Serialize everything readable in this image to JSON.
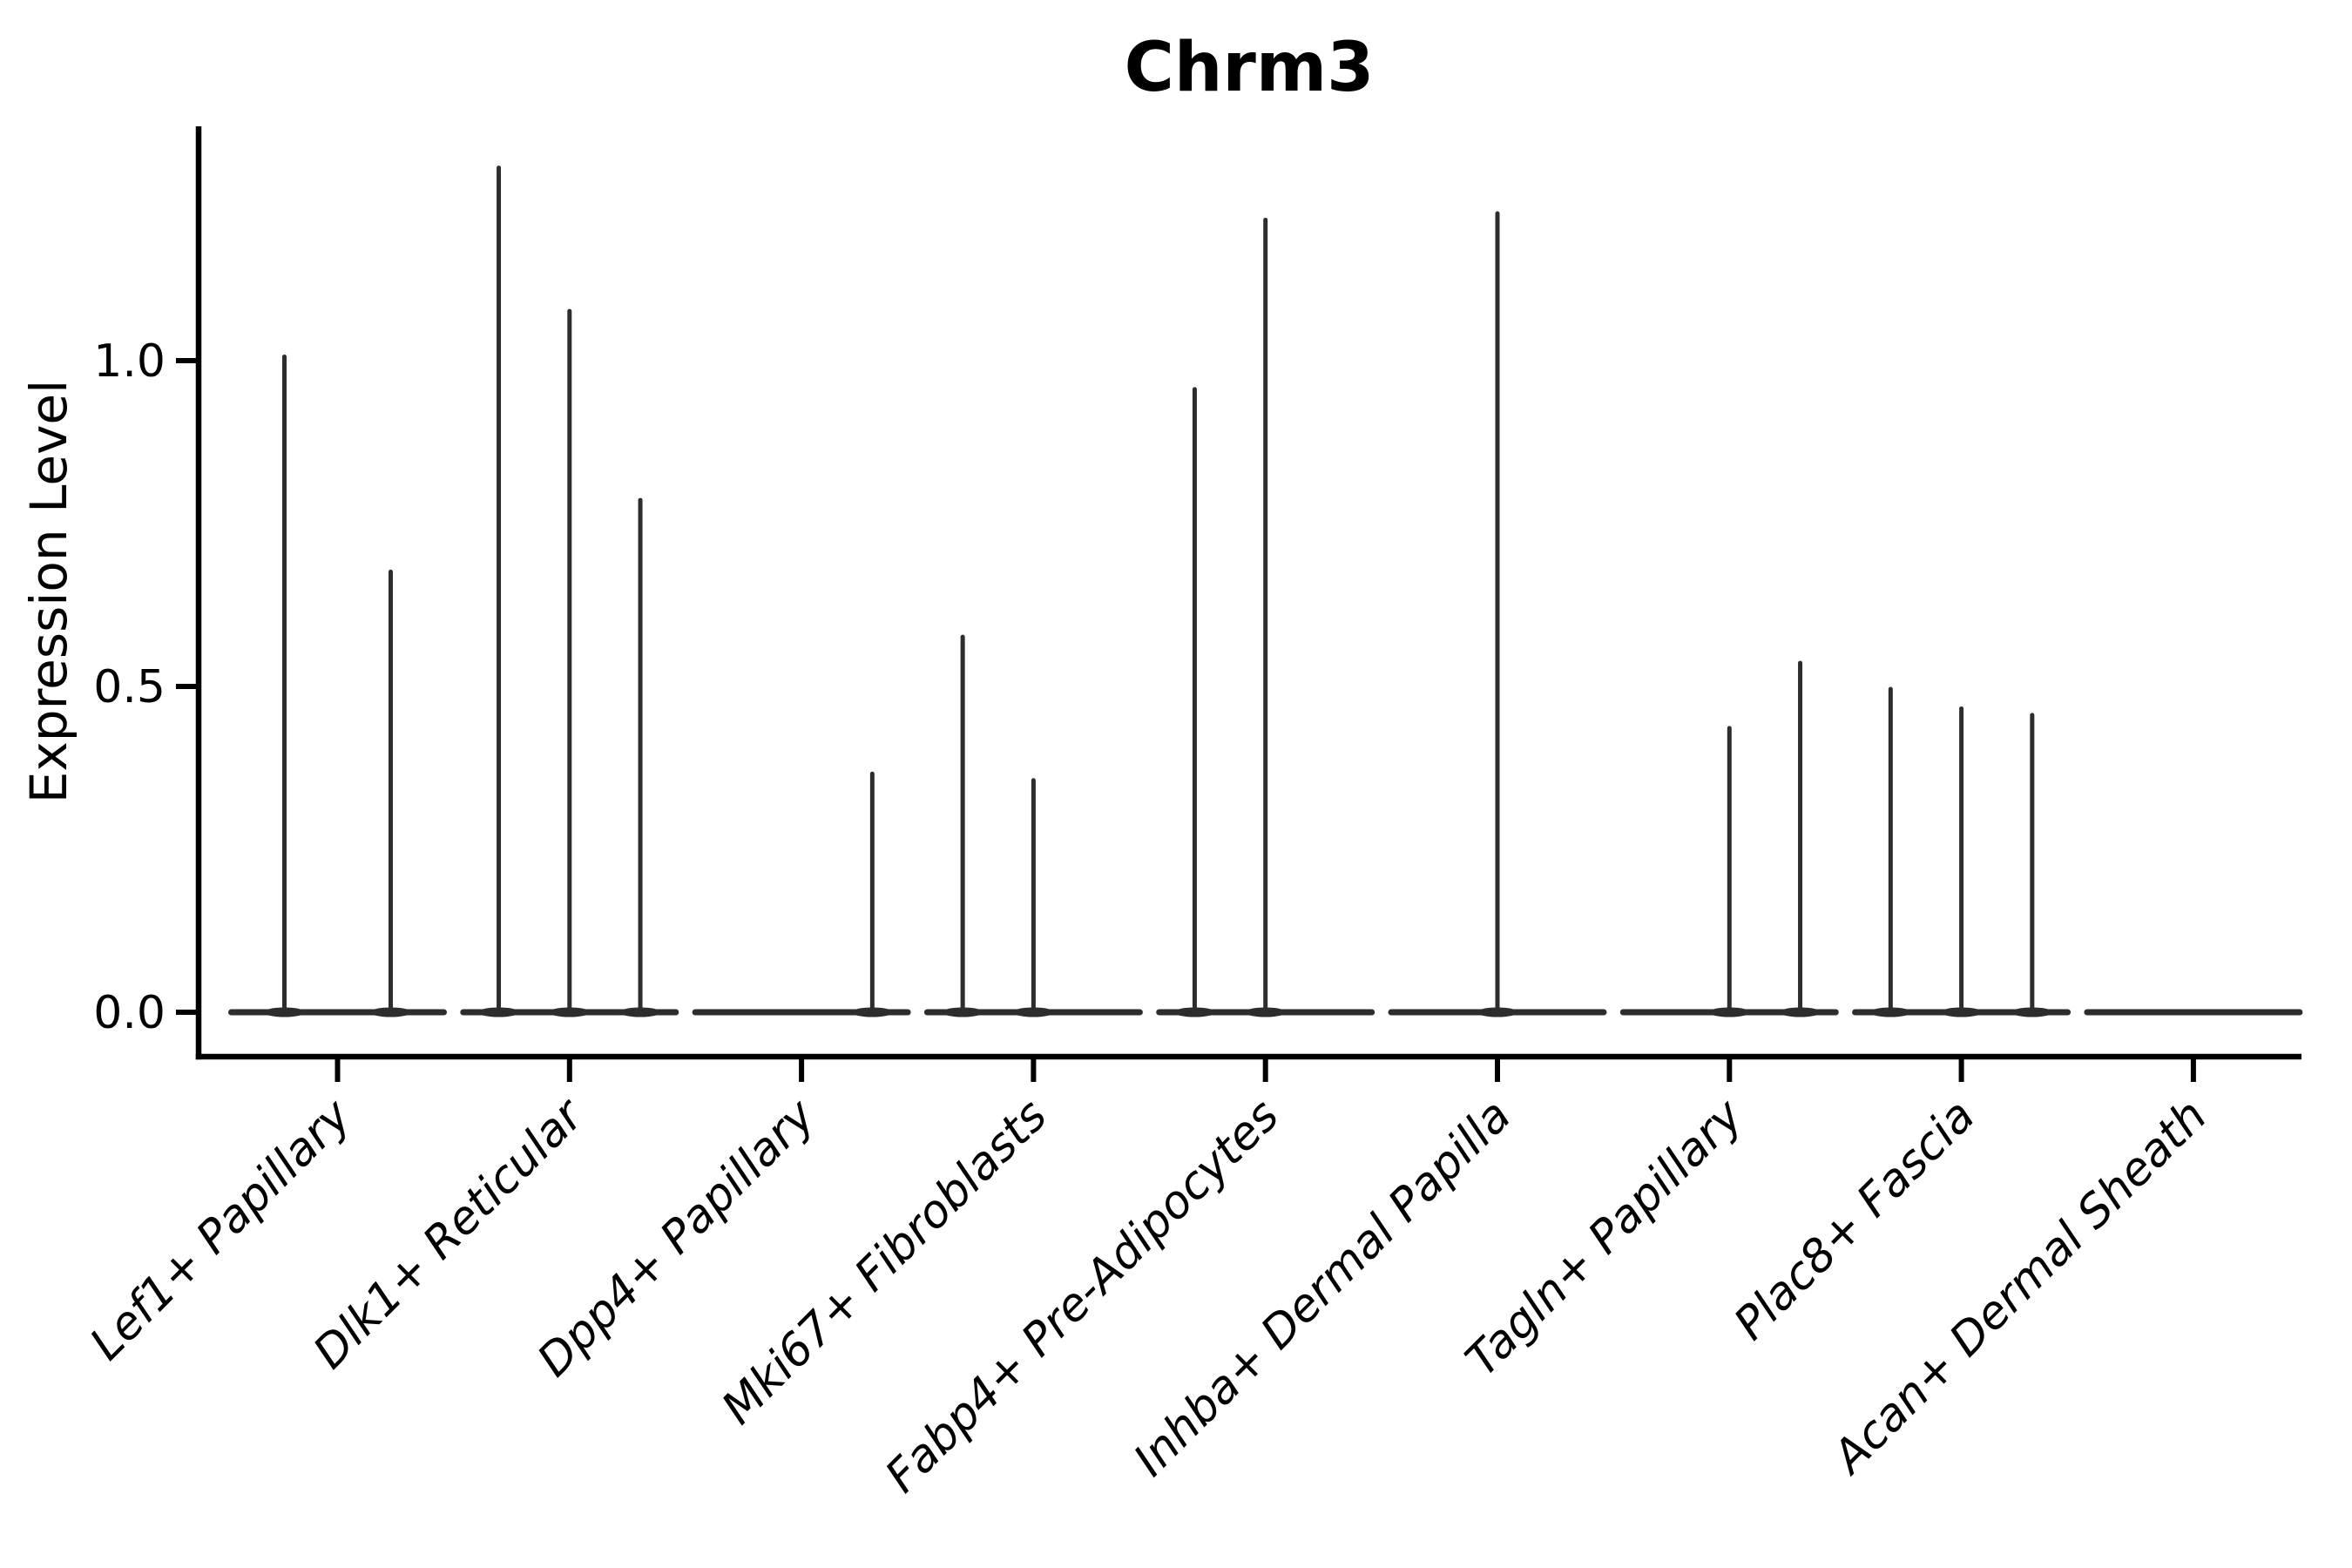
{
  "title": "Chrm3",
  "colors": {
    "violin": "#2d2d2d",
    "axis": "#000000",
    "text": "#000000",
    "background": "#ffffff"
  },
  "chart_data": {
    "type": "violin",
    "title": "Chrm3",
    "xlabel": "",
    "ylabel": "Expression Level",
    "ylim": [
      -0.07,
      1.36
    ],
    "grid": false,
    "legend": null,
    "yticks": [
      {
        "label": "0.0",
        "value": 0.0
      },
      {
        "label": "0.5",
        "value": 0.5
      },
      {
        "label": "1.0",
        "value": 1.0
      }
    ],
    "categories": [
      "Lef1+ Papillary",
      "Dlk1+ Reticular",
      "Dpp4+ Papillary",
      "Mki67+ Fibroblasts",
      "Fabp4+ Pre-Adipocytes",
      "Inhba+ Dermal Papilla",
      "Tagln+ Papillary",
      "Plac8+ Fascia",
      "Acan+ Dermal Sheath"
    ],
    "violins": [
      {
        "category": "Lef1+ Papillary",
        "spikes": [
          {
            "pos": 0.25,
            "value": 1.01
          },
          {
            "pos": 0.75,
            "value": 0.68
          }
        ]
      },
      {
        "category": "Dlk1+ Reticular",
        "spikes": [
          {
            "pos": 0.167,
            "value": 1.3
          },
          {
            "pos": 0.5,
            "value": 1.08
          },
          {
            "pos": 0.833,
            "value": 0.79
          }
        ]
      },
      {
        "category": "Dpp4+ Papillary",
        "spikes": [
          {
            "pos": 0.833,
            "value": 0.37
          }
        ]
      },
      {
        "category": "Mki67+ Fibroblasts",
        "spikes": [
          {
            "pos": 0.167,
            "value": 0.58
          },
          {
            "pos": 0.5,
            "value": 0.36
          }
        ]
      },
      {
        "category": "Fabp4+ Pre-Adipocytes",
        "spikes": [
          {
            "pos": 0.167,
            "value": 0.96
          },
          {
            "pos": 0.5,
            "value": 1.22
          }
        ]
      },
      {
        "category": "Inhba+ Dermal Papilla",
        "spikes": [
          {
            "pos": 0.5,
            "value": 1.23
          }
        ]
      },
      {
        "category": "Tagln+ Papillary",
        "spikes": [
          {
            "pos": 0.5,
            "value": 0.44
          },
          {
            "pos": 0.833,
            "value": 0.54
          }
        ]
      },
      {
        "category": "Plac8+ Fascia",
        "spikes": [
          {
            "pos": 0.167,
            "value": 0.5
          },
          {
            "pos": 0.5,
            "value": 0.47
          },
          {
            "pos": 0.833,
            "value": 0.46
          }
        ]
      },
      {
        "category": "Acan+ Dermal Sheath",
        "spikes": []
      }
    ]
  }
}
